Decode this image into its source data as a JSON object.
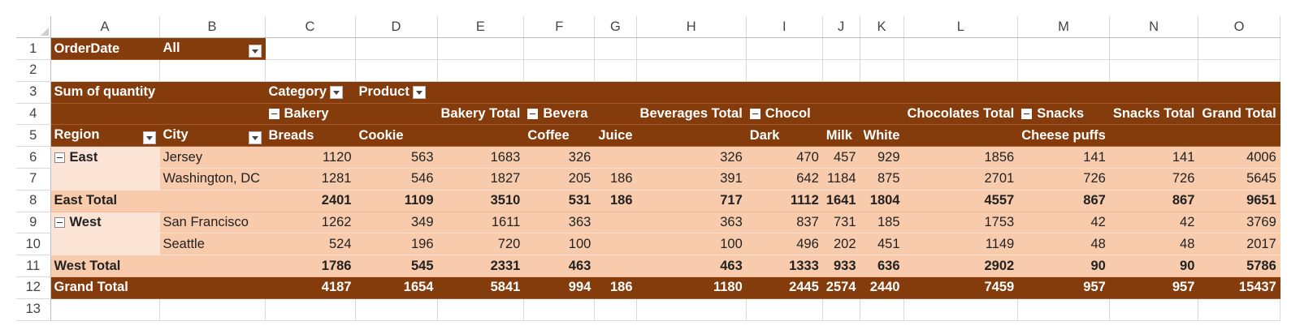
{
  "columns": [
    "A",
    "B",
    "C",
    "D",
    "E",
    "F",
    "G",
    "H",
    "I",
    "J",
    "K",
    "L",
    "M",
    "N",
    "O"
  ],
  "rows": [
    "1",
    "2",
    "3",
    "4",
    "5",
    "6",
    "7",
    "8",
    "9",
    "10",
    "11",
    "12",
    "13"
  ],
  "filter": {
    "field": "OrderDate",
    "value": "All"
  },
  "pivot": {
    "value_field": "Sum of quantity",
    "col_fields": [
      "Category",
      "Product"
    ],
    "categories": {
      "bakery": "Bakery",
      "bakery_total": "Bakery Total",
      "beverages": "Bevera",
      "beverages_total": "Beverages Total",
      "chocolates": "Chocol",
      "chocolates_total": "Chocolates Total",
      "snacks": "Snacks",
      "snacks_total": "Snacks Total",
      "grand_total": "Grand Total"
    },
    "row_fields": [
      "Region",
      "City"
    ],
    "products": [
      "Breads",
      "Cookie",
      "Coffee",
      "Juice",
      "Dark",
      "Milk",
      "White",
      "Cheese puffs"
    ]
  },
  "data": {
    "east": {
      "label": "East",
      "cities": [
        {
          "city": "Jersey",
          "values": [
            "1120",
            "563",
            "1683",
            "326",
            "",
            "326",
            "470",
            "457",
            "929",
            "1856",
            "141",
            "141",
            "4006"
          ]
        },
        {
          "city": "Washington, DC",
          "values": [
            "1281",
            "546",
            "1827",
            "205",
            "186",
            "391",
            "642",
            "1184",
            "875",
            "2701",
            "726",
            "726",
            "5645"
          ]
        }
      ]
    },
    "east_total": {
      "label": "East Total",
      "values": [
        "2401",
        "1109",
        "3510",
        "531",
        "186",
        "717",
        "1112",
        "1641",
        "1804",
        "4557",
        "867",
        "867",
        "9651"
      ]
    },
    "west": {
      "label": "West",
      "cities": [
        {
          "city": "San Francisco",
          "values": [
            "1262",
            "349",
            "1611",
            "363",
            "",
            "363",
            "837",
            "731",
            "185",
            "1753",
            "42",
            "42",
            "3769"
          ]
        },
        {
          "city": "Seattle",
          "values": [
            "524",
            "196",
            "720",
            "100",
            "",
            "100",
            "496",
            "202",
            "451",
            "1149",
            "48",
            "48",
            "2017"
          ]
        }
      ]
    },
    "west_total": {
      "label": "West Total",
      "values": [
        "1786",
        "545",
        "2331",
        "463",
        "",
        "463",
        "1333",
        "933",
        "636",
        "2902",
        "90",
        "90",
        "5786"
      ]
    },
    "grand_total": {
      "label": "Grand Total",
      "values": [
        "4187",
        "1654",
        "5841",
        "994",
        "186",
        "1180",
        "2445",
        "2574",
        "2440",
        "7459",
        "957",
        "957",
        "15437"
      ]
    }
  }
}
